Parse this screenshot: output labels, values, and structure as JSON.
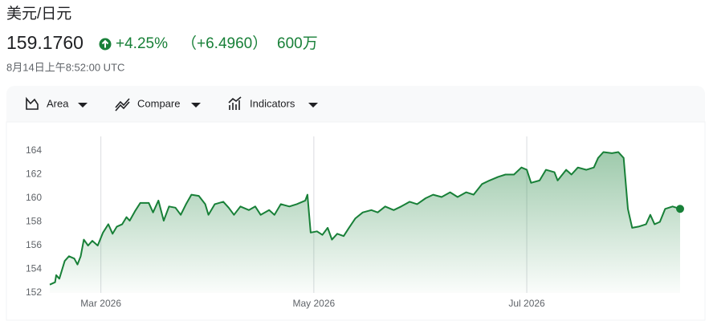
{
  "header": {
    "title": "美元/日元",
    "price": "159.1760",
    "change_percent": "+4.25%",
    "change_amount": "（+6.4960）",
    "volume": "600万",
    "timestamp": "8月14日上午8:52:00 UTC"
  },
  "toolbar": [
    "Area",
    "Compare",
    "Indicators"
  ],
  "chart_data": {
    "type": "area",
    "color": "#188038",
    "x": [
      2.52,
      2.57,
      2.58,
      2.61,
      2.66,
      2.7,
      2.75,
      2.78,
      2.81,
      2.84,
      2.88,
      2.92,
      2.97,
      3.02,
      3.07,
      3.11,
      3.15,
      3.2,
      3.24,
      3.27,
      3.32,
      3.37,
      3.45,
      3.49,
      3.54,
      3.59,
      3.64,
      3.7,
      3.75,
      3.8,
      3.85,
      3.92,
      3.98,
      4.01,
      4.07,
      4.15,
      4.2,
      4.25,
      4.31,
      4.39,
      4.45,
      4.5,
      4.58,
      4.63,
      4.69,
      4.77,
      4.84,
      4.92,
      4.94,
      4.97,
      5.03,
      5.08,
      5.13,
      5.17,
      5.22,
      5.28,
      5.33,
      5.39,
      5.46,
      5.54,
      5.6,
      5.67,
      5.75,
      5.82,
      5.9,
      5.97,
      6.05,
      6.12,
      6.2,
      6.28,
      6.35,
      6.43,
      6.5,
      6.58,
      6.65,
      6.73,
      6.8,
      6.88,
      6.95,
      7.0,
      7.04,
      7.12,
      7.18,
      7.26,
      7.29,
      7.37,
      7.42,
      7.48,
      7.56,
      7.63,
      7.67,
      7.72,
      7.8,
      7.86,
      7.91,
      7.95,
      7.99,
      8.05,
      8.12,
      8.16,
      8.2,
      8.25,
      8.3,
      8.37,
      8.44
    ],
    "values": [
      152.7,
      152.9,
      153.5,
      153.2,
      154.7,
      155.1,
      154.9,
      154.4,
      155.1,
      156.5,
      156.0,
      156.4,
      156.0,
      157.1,
      157.8,
      157.0,
      157.6,
      157.8,
      158.4,
      158.1,
      158.9,
      159.6,
      159.6,
      158.8,
      159.8,
      158.1,
      159.3,
      159.2,
      158.6,
      159.5,
      160.3,
      160.2,
      159.5,
      158.6,
      159.5,
      159.7,
      159.2,
      158.6,
      159.3,
      159.0,
      159.3,
      158.6,
      159.0,
      158.6,
      159.5,
      159.3,
      159.5,
      159.8,
      160.3,
      157.1,
      157.2,
      156.9,
      157.5,
      156.5,
      157.0,
      156.8,
      157.5,
      158.3,
      158.8,
      159.0,
      158.8,
      159.3,
      159.0,
      159.3,
      159.7,
      159.5,
      160.0,
      160.3,
      160.1,
      160.5,
      160.1,
      160.5,
      160.3,
      161.2,
      161.5,
      161.8,
      162.0,
      162.0,
      162.6,
      162.4,
      161.3,
      161.5,
      162.4,
      162.2,
      161.5,
      162.4,
      162.0,
      162.6,
      162.4,
      162.6,
      163.4,
      163.9,
      163.8,
      163.9,
      163.4,
      159.1,
      157.5,
      157.6,
      157.8,
      158.6,
      157.8,
      158.0,
      159.1,
      159.3,
      159.1
    ],
    "xlim": [
      2.52,
      8.44
    ],
    "xticks": [
      {
        "value": 3,
        "label": "Mar 2026"
      },
      {
        "value": 5,
        "label": "May 2026"
      },
      {
        "value": 7,
        "label": "Jul 2026"
      }
    ],
    "ylim": [
      152,
      165
    ],
    "yticks": [
      152,
      154,
      156,
      158,
      160,
      162,
      164
    ],
    "grid": "x"
  }
}
